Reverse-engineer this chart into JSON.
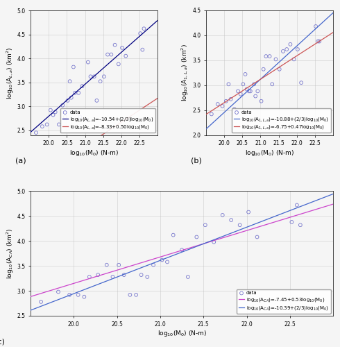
{
  "panels": [
    {
      "label": "(a)",
      "xlabel": "log$_{10}$(M$_0$) (N-m)",
      "ylabel": "log$_{10}$(A$_{L,a}$) (km$^2$)",
      "xlim": [
        19.5,
        23
      ],
      "ylim": [
        2.4,
        5.0
      ],
      "xticks": [
        20,
        20.5,
        21,
        21.5,
        22,
        22.5
      ],
      "yticks": [
        2.5,
        3.0,
        3.5,
        4.0,
        4.5,
        5.0
      ],
      "scatter_x": [
        19.65,
        19.82,
        19.95,
        20.05,
        20.12,
        20.18,
        20.28,
        20.38,
        20.45,
        20.52,
        20.58,
        20.62,
        20.68,
        20.72,
        20.82,
        20.86,
        20.92,
        21.02,
        21.08,
        21.15,
        21.25,
        21.32,
        21.42,
        21.52,
        21.62,
        21.72,
        21.82,
        21.92,
        22.02,
        22.12,
        22.52,
        22.58,
        22.62
      ],
      "scatter_y": [
        2.45,
        2.58,
        2.62,
        2.92,
        2.82,
        2.88,
        2.62,
        3.02,
        2.78,
        3.12,
        3.52,
        3.18,
        3.82,
        3.28,
        3.28,
        2.78,
        3.42,
        2.72,
        3.92,
        3.62,
        3.62,
        3.12,
        3.52,
        3.62,
        4.08,
        4.08,
        4.28,
        3.88,
        4.22,
        4.05,
        4.52,
        4.18,
        4.62
      ],
      "line1_color": "#000080",
      "line1_label": "log$_{10}$(A$_{L,a}$)=-10.54+(2/3)log$_{10}$(M$_0$)",
      "line1_slope": 0.6667,
      "line1_intercept": -10.54,
      "line2_color": "#cc5555",
      "line2_label": "log$_{10}$(A$_{L,a}$)=-8.33+0.50log$_{10}$(M$_0$)",
      "line2_slope": 0.5,
      "line2_intercept": -8.33,
      "legend_loc": "lower right",
      "data_label": "data"
    },
    {
      "label": "(b)",
      "xlabel": "log$_{10}$(M$_0$) (N-m)",
      "ylabel": "log$_{10}$(A$_{1,L,a}$) (km$^2$)",
      "xlim": [
        19.5,
        23
      ],
      "ylim": [
        2.0,
        4.5
      ],
      "xticks": [
        20,
        20.5,
        21,
        21.5,
        22,
        22.5
      ],
      "yticks": [
        2.0,
        2.5,
        3.0,
        3.5,
        4.0,
        4.5
      ],
      "scatter_x": [
        19.65,
        19.82,
        19.95,
        20.05,
        20.12,
        20.18,
        20.28,
        20.38,
        20.45,
        20.52,
        20.58,
        20.62,
        20.68,
        20.72,
        20.82,
        20.86,
        20.92,
        21.02,
        21.08,
        21.15,
        21.25,
        21.32,
        21.42,
        21.52,
        21.62,
        21.72,
        21.82,
        21.92,
        22.02,
        22.12,
        22.52,
        22.58,
        22.62
      ],
      "scatter_y": [
        2.42,
        2.62,
        2.58,
        2.68,
        3.02,
        2.72,
        2.52,
        2.88,
        2.82,
        3.02,
        3.22,
        2.92,
        2.88,
        2.88,
        3.02,
        2.78,
        2.88,
        2.68,
        3.32,
        3.58,
        3.58,
        3.02,
        3.52,
        3.32,
        3.68,
        3.72,
        3.82,
        3.52,
        3.72,
        3.05,
        4.18,
        3.88,
        3.88
      ],
      "line1_color": "#4466cc",
      "line1_label": "log$_{10}$(A$_{1,L,a}$)=-10.88+(2/3)log$_{10}$(M$_0$)",
      "line1_slope": 0.6667,
      "line1_intercept": -10.88,
      "line2_color": "#cc5555",
      "line2_label": "log$_{10}$(A$_{1,L,a}$)=-6.75+0.47log$_{10}$(M$_0$)",
      "line2_slope": 0.47,
      "line2_intercept": -6.75,
      "legend_loc": "lower right",
      "data_label": "data"
    },
    {
      "label": "(c)",
      "xlabel": "log$_{10}$(M$_0$) (N-m)",
      "ylabel": "log$_{10}$(A$_{CA}$) (km$^2$)",
      "xlim": [
        19.5,
        23
      ],
      "ylim": [
        2.5,
        5.0
      ],
      "xticks": [
        20,
        20.5,
        21,
        21.5,
        22,
        22.5
      ],
      "yticks": [
        2.5,
        3.0,
        3.5,
        4.0,
        4.5,
        5.0
      ],
      "scatter_x": [
        19.62,
        19.82,
        19.95,
        20.05,
        20.12,
        20.18,
        20.28,
        20.38,
        20.45,
        20.52,
        20.58,
        20.65,
        20.72,
        20.78,
        20.85,
        20.92,
        21.02,
        21.08,
        21.15,
        21.25,
        21.32,
        21.42,
        21.52,
        21.62,
        21.72,
        21.82,
        21.92,
        22.02,
        22.12,
        22.52,
        22.58,
        22.62
      ],
      "scatter_y": [
        2.78,
        2.98,
        2.92,
        2.92,
        2.88,
        3.28,
        3.32,
        3.52,
        3.28,
        3.52,
        3.32,
        2.92,
        2.92,
        3.32,
        3.28,
        3.52,
        3.62,
        3.58,
        4.12,
        3.82,
        3.28,
        4.08,
        4.32,
        3.98,
        4.52,
        4.42,
        4.32,
        4.58,
        4.08,
        4.38,
        4.72,
        4.32
      ],
      "line1_color": "#cc44cc",
      "line1_label": "log$_{10}$(A$_{CA}$)=-7.45+0.53log$_{10}$(M$_0$)",
      "line1_slope": 0.53,
      "line1_intercept": -7.45,
      "line2_color": "#4466cc",
      "line2_label": "log$_{10}$(A$_{CA}$)=-10.39+(2/3)log$_{10}$(M$_0$)",
      "line2_slope": 0.6667,
      "line2_intercept": -10.39,
      "legend_loc": "lower right",
      "data_label": "data"
    }
  ],
  "fig_bg": "#f5f5f5",
  "scatter_color": "#7777cc",
  "scatter_size": 12,
  "scatter_marker": "o",
  "grid_color": "#bbbbbb",
  "grid_alpha": 0.7,
  "tick_fontsize": 5.5,
  "label_fontsize": 6.5,
  "legend_fontsize": 5.0
}
